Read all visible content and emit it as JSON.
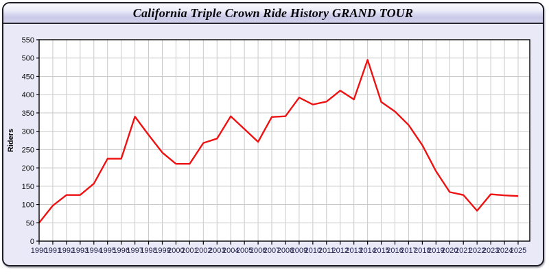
{
  "window": {
    "title": "California Triple Crown Ride History GRAND TOUR"
  },
  "colors": {
    "panel_background": "#e9e9f8",
    "plot_background": "#ffffff",
    "grid": "#c9c9c9",
    "plot_border": "#000000",
    "line": "#ee1111",
    "y_label_text": "#0a0a0a",
    "x_label_text": "#22224d",
    "axis_title_text": "#0a0a0a"
  },
  "chart_data": {
    "type": "line",
    "title": "California Triple Crown Ride History GRAND TOUR",
    "xlabel": "",
    "ylabel": "Riders",
    "ylim": [
      0,
      550
    ],
    "ytick_step": 50,
    "grid": true,
    "legend_position": "none",
    "marker": "none",
    "categories": [
      1990,
      1991,
      1992,
      1993,
      1994,
      1995,
      1996,
      1997,
      1998,
      1999,
      2000,
      2001,
      2002,
      2003,
      2004,
      2005,
      2006,
      2007,
      2008,
      2009,
      2010,
      2011,
      2012,
      2013,
      2014,
      2015,
      2016,
      2017,
      2018,
      2019,
      2020,
      2021,
      2022,
      2023,
      2024,
      2025
    ],
    "series": [
      {
        "name": "Riders",
        "values": [
          50,
          97,
          126,
          126,
          157,
          225,
          225,
          340,
          290,
          242,
          211,
          211,
          268,
          280,
          341,
          306,
          271,
          339,
          341,
          392,
          373,
          381,
          411,
          387,
          495,
          380,
          354,
          317,
          262,
          191,
          134,
          126,
          83,
          128,
          125,
          123
        ]
      }
    ]
  }
}
